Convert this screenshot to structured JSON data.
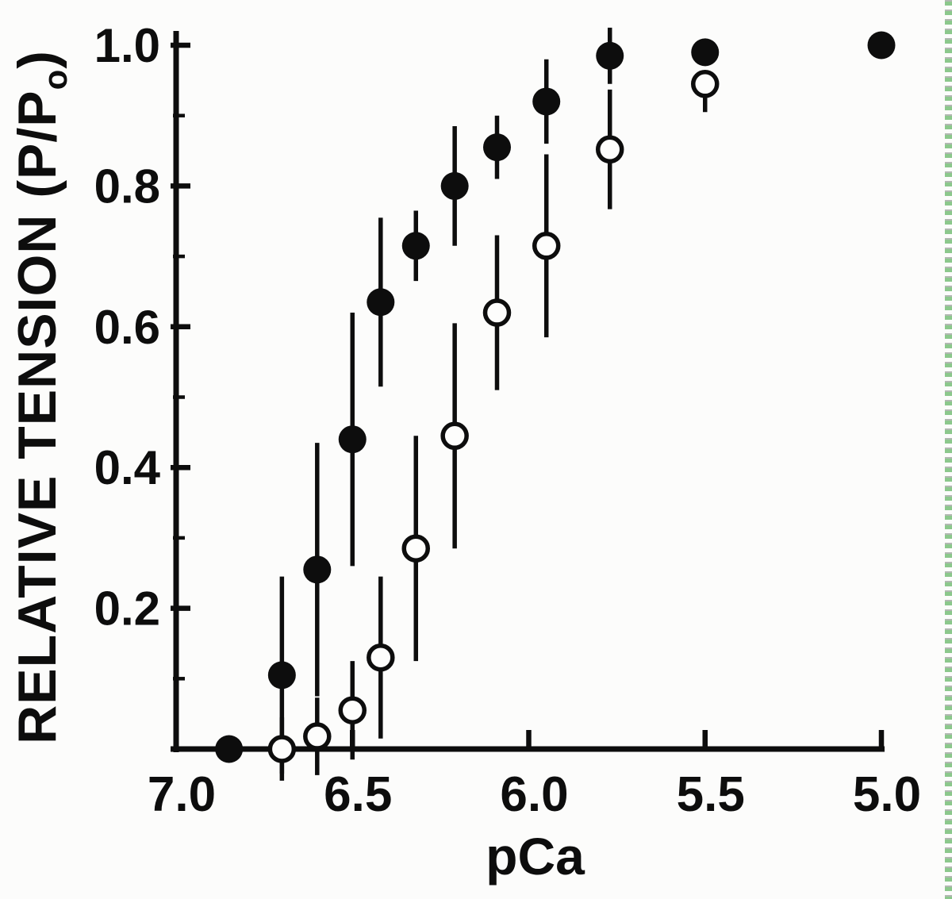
{
  "figure": {
    "background": "#fcfcfb",
    "ink": "#0d0d0d",
    "paper_white": "#fdfdfc",
    "scan_edge": {
      "green": "#8cc88c",
      "gray": "#b2b8b2"
    }
  },
  "chart_data": {
    "type": "scatter",
    "title": "",
    "xlabel": "pCa",
    "ylabel": "RELATIVE TENSION (P/Po)",
    "ylabel_parts": {
      "prefix": "RELATIVE TENSION (P/P",
      "subscript": "o",
      "suffix": ")"
    },
    "grid": false,
    "legend": "none",
    "x_axis": {
      "min": 7.0,
      "max": 5.0,
      "reversed_scale": true,
      "major_ticks": [
        7.0,
        6.5,
        6.0,
        5.5,
        5.0
      ],
      "tick_labels": [
        "7.0",
        "6.5",
        "6.0",
        "5.5",
        "5.0"
      ]
    },
    "y_axis": {
      "min": 0.0,
      "max": 1.0,
      "major_ticks": [
        0.2,
        0.4,
        0.6,
        0.8,
        1.0
      ],
      "tick_labels": [
        "0.2",
        "0.4",
        "0.6",
        "0.8",
        "1.0"
      ],
      "minor_ticks": [
        0.1,
        0.3,
        0.5,
        0.7,
        0.9
      ]
    },
    "series": [
      {
        "name": "filled-circles",
        "marker": "filled-circle",
        "points": [
          {
            "pCa": 6.85,
            "tension": 0.0,
            "err": 0
          },
          {
            "pCa": 6.7,
            "tension": 0.105,
            "err": 0.14
          },
          {
            "pCa": 6.6,
            "tension": 0.255,
            "err": 0.18
          },
          {
            "pCa": 6.5,
            "tension": 0.44,
            "err": 0.18
          },
          {
            "pCa": 6.42,
            "tension": 0.635,
            "err": 0.12
          },
          {
            "pCa": 6.32,
            "tension": 0.715,
            "err": 0.05
          },
          {
            "pCa": 6.21,
            "tension": 0.8,
            "err": 0.085
          },
          {
            "pCa": 6.09,
            "tension": 0.855,
            "err": 0.045
          },
          {
            "pCa": 5.95,
            "tension": 0.92,
            "err": 0.06
          },
          {
            "pCa": 5.77,
            "tension": 0.985,
            "err": 0.04
          },
          {
            "pCa": 5.5,
            "tension": 0.99,
            "err": 0
          },
          {
            "pCa": 5.0,
            "tension": 1.0,
            "err": 0
          }
        ]
      },
      {
        "name": "open-circles",
        "marker": "open-circle",
        "points": [
          {
            "pCa": 6.7,
            "tension": 0.0,
            "err": 0.045
          },
          {
            "pCa": 6.6,
            "tension": 0.018,
            "err": 0.055
          },
          {
            "pCa": 6.5,
            "tension": 0.055,
            "err": 0.07
          },
          {
            "pCa": 6.42,
            "tension": 0.13,
            "err": 0.115
          },
          {
            "pCa": 6.32,
            "tension": 0.285,
            "err": 0.16
          },
          {
            "pCa": 6.21,
            "tension": 0.445,
            "err": 0.16
          },
          {
            "pCa": 6.09,
            "tension": 0.62,
            "err": 0.11
          },
          {
            "pCa": 5.95,
            "tension": 0.715,
            "err": 0.13
          },
          {
            "pCa": 5.77,
            "tension": 0.852,
            "err": 0.085
          },
          {
            "pCa": 5.5,
            "tension": 0.945,
            "err_lo": 0.04,
            "err_hi": 0.01
          }
        ]
      }
    ]
  }
}
